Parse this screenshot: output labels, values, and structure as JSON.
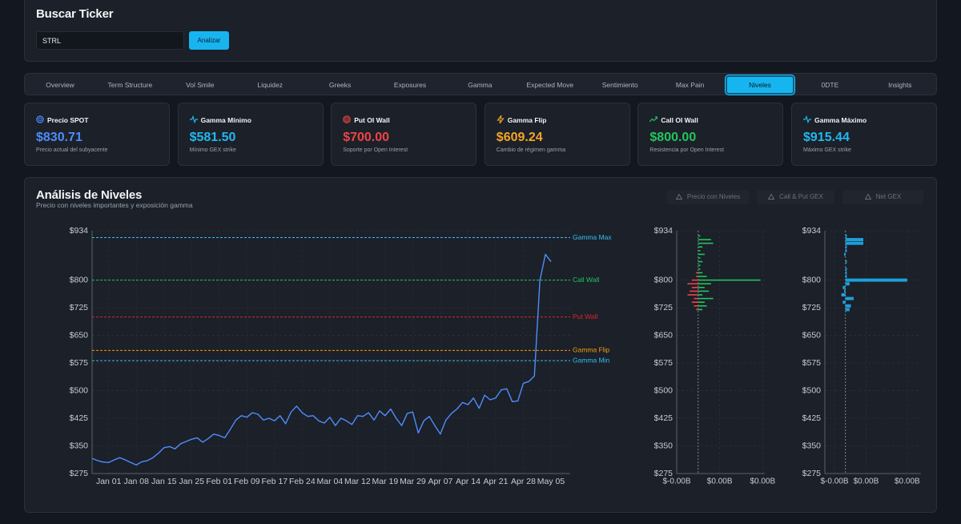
{
  "search": {
    "title": "Buscar Ticker",
    "input": "STRL",
    "button": "Analizar"
  },
  "tabs": [
    {
      "label": "Overview",
      "active": false
    },
    {
      "label": "Term Structure",
      "active": false
    },
    {
      "label": "Vol Smile",
      "active": false
    },
    {
      "label": "Liquidez",
      "active": false
    },
    {
      "label": "Greeks",
      "active": false
    },
    {
      "label": "Exposures",
      "active": false
    },
    {
      "label": "Gamma",
      "active": false
    },
    {
      "label": "Expected Move",
      "active": false
    },
    {
      "label": "Sentimiento",
      "active": false
    },
    {
      "label": "Max Pain",
      "active": false
    },
    {
      "label": "Niveles",
      "active": true
    },
    {
      "label": "0DTE",
      "active": false
    },
    {
      "label": "Insights",
      "active": false
    }
  ],
  "cards": [
    {
      "title": "Precio SPOT",
      "value": "$830.71",
      "note": "Precio actual del subyacente",
      "color": "#4f8dfb"
    },
    {
      "title": "Gamma Mínimo",
      "value": "$581.50",
      "note": "Mínimo GEX strike",
      "color": "#22b8f0"
    },
    {
      "title": "Put OI Wall",
      "value": "$700.00",
      "note": "Soporte por Open Interest",
      "color": "#ef4444"
    },
    {
      "title": "Gamma Flip",
      "value": "$609.24",
      "note": "Cambio de régimen gamma",
      "color": "#f5a524"
    },
    {
      "title": "Call OI Wall",
      "value": "$800.00",
      "note": "Resistencia por Open Interest",
      "color": "#22c55e"
    },
    {
      "title": "Gamma Máximo",
      "value": "$915.44",
      "note": "Máximo GEX strike",
      "color": "#22b8f0"
    }
  ],
  "panel": {
    "title": "Análisis de Niveles",
    "subtitle": "Precio con niveles importantes y exposición gamma",
    "buttons": [
      "Precio con Niveles",
      "Call & Put GEX",
      "Net GEX"
    ]
  },
  "chart_data": [
    {
      "type": "line",
      "x": [
        null,
        null,
        null,
        "Jan 01",
        null,
        null,
        null,
        null,
        "Jan 08",
        null,
        null,
        null,
        null,
        "Jan 15",
        null,
        null,
        null,
        null,
        "Jan 25",
        null,
        null,
        null,
        null,
        "Feb 01",
        null,
        null,
        null,
        null,
        "Feb 09",
        null,
        null,
        null,
        null,
        "Feb 17",
        null,
        null,
        null,
        null,
        "Feb 24",
        null,
        null,
        null,
        null,
        "Mar 04",
        null,
        null,
        null,
        null,
        "Mar 12",
        null,
        null,
        null,
        null,
        "Mar 19",
        null,
        null,
        null,
        null,
        "Mar 29",
        null,
        null,
        null,
        null,
        "Apr 07",
        null,
        null,
        null,
        null,
        "Apr 14",
        null,
        null,
        null,
        null,
        "Apr 21",
        null,
        null,
        null,
        null,
        "Apr 28",
        null,
        null,
        null,
        null,
        "May 05"
      ],
      "series": [
        {
          "color": "#4f8dfb",
          "values": [
            316,
            310,
            306,
            305,
            312,
            318,
            312,
            305,
            298,
            307,
            310,
            318,
            330,
            345,
            348,
            342,
            356,
            362,
            368,
            372,
            360,
            370,
            382,
            378,
            372,
            395,
            420,
            432,
            428,
            440,
            436,
            420,
            425,
            418,
            432,
            410,
            442,
            458,
            440,
            430,
            432,
            418,
            412,
            428,
            405,
            425,
            418,
            408,
            432,
            430,
            440,
            420,
            445,
            432,
            450,
            425,
            405,
            438,
            442,
            385,
            418,
            430,
            405,
            382,
            420,
            438,
            450,
            468,
            462,
            480,
            452,
            488,
            475,
            480,
            502,
            505,
            470,
            472,
            520,
            525,
            540,
            800,
            870,
            850
          ]
        }
      ],
      "levels": [
        {
          "label": "Gamma Max",
          "value": 915.44,
          "color": "#38bdf8"
        },
        {
          "label": "Call Wall",
          "value": 800,
          "color": "#22c55e"
        },
        {
          "label": "Put Wall",
          "value": 700,
          "color": "#dc2626"
        },
        {
          "label": "Gamma Flip",
          "value": 609.24,
          "color": "#f59e0b"
        },
        {
          "label": "Gamma Min",
          "value": 581.5,
          "color": "#38bdf8"
        }
      ],
      "ylim": [
        275,
        934
      ],
      "yticks": [
        {
          "value": 275,
          "label": "$275"
        },
        {
          "value": 350,
          "label": "$350"
        },
        {
          "value": 425,
          "label": "$425"
        },
        {
          "value": 500,
          "label": "$500"
        },
        {
          "value": 575,
          "label": "$575"
        },
        {
          "value": 650,
          "label": "$650"
        },
        {
          "value": 725,
          "label": "$725"
        },
        {
          "value": 800,
          "label": "$800"
        },
        {
          "value": 934,
          "label": "$934"
        }
      ],
      "grid": true
    },
    {
      "type": "hbar",
      "y": [
        720,
        730,
        740,
        750,
        760,
        770,
        780,
        790,
        800,
        810,
        820,
        830,
        840,
        850,
        860,
        870,
        880,
        890,
        900,
        910,
        920
      ],
      "series": [
        {
          "color": "#22c55e",
          "values": [
            0.0002,
            0.0004,
            0.0003,
            0.0007,
            0.0002,
            0.0005,
            0.0003,
            0.0006,
            0.0029,
            0.0004,
            0.0002,
            0.0001,
            0.0001,
            0.0002,
            0.0001,
            0.0003,
            0.0001,
            0.0002,
            0.0007,
            0.0006,
            0.0001
          ]
        },
        {
          "color": "#ef4444",
          "values": [
            -0.0001,
            -0.0002,
            -0.0003,
            -0.0002,
            -0.0005,
            -0.0004,
            -0.0003,
            -0.0005,
            -0.0003,
            -0.0001,
            -0.0001,
            0,
            0,
            0,
            0,
            0,
            0,
            0,
            0,
            0,
            0
          ]
        }
      ],
      "xlim": [
        -0.001,
        0.0031
      ],
      "xticks": [
        {
          "value": -0.001,
          "label": "$-0.00B"
        },
        {
          "value": 0.001,
          "label": "$0.00B"
        },
        {
          "value": 0.003,
          "label": "$0.00B"
        }
      ],
      "ylim": [
        275,
        934
      ],
      "yticks": [
        {
          "value": 275,
          "label": "$275"
        },
        {
          "value": 350,
          "label": "$350"
        },
        {
          "value": 425,
          "label": "$425"
        },
        {
          "value": 500,
          "label": "$500"
        },
        {
          "value": 575,
          "label": "$575"
        },
        {
          "value": 650,
          "label": "$650"
        },
        {
          "value": 725,
          "label": "$725"
        },
        {
          "value": 800,
          "label": "$800"
        },
        {
          "value": 934,
          "label": "$934"
        }
      ],
      "grid": true
    },
    {
      "type": "hbar",
      "y": [
        720,
        730,
        740,
        750,
        760,
        770,
        780,
        790,
        800,
        810,
        820,
        830,
        840,
        850,
        860,
        870,
        880,
        890,
        900,
        910,
        920
      ],
      "series": [
        {
          "color": "#1e9fd8",
          "values": [
            0.0003,
            0.0004,
            -0.0002,
            0.0006,
            -0.0003,
            -0.0001,
            -0.0002,
            0.0003,
            0.0045,
            0.0001,
            0.0001,
            0.0001,
            0,
            0.0001,
            0,
            -0.0001,
            0.0001,
            0.0001,
            0.0013,
            0.0013,
            0.0001
          ]
        }
      ],
      "xlim": [
        -0.0015,
        0.0055
      ],
      "xticks": [
        {
          "value": -0.0008,
          "label": "$-0.00B"
        },
        {
          "value": 0.0015,
          "label": "$0.00B"
        },
        {
          "value": 0.0045,
          "label": "$0.00B"
        }
      ],
      "ylim": [
        275,
        934
      ],
      "yticks": [
        {
          "value": 275,
          "label": "$275"
        },
        {
          "value": 350,
          "label": "$350"
        },
        {
          "value": 425,
          "label": "$425"
        },
        {
          "value": 500,
          "label": "$500"
        },
        {
          "value": 575,
          "label": "$575"
        },
        {
          "value": 650,
          "label": "$650"
        },
        {
          "value": 725,
          "label": "$725"
        },
        {
          "value": 800,
          "label": "$800"
        },
        {
          "value": 934,
          "label": "$934"
        }
      ],
      "grid": true
    }
  ]
}
